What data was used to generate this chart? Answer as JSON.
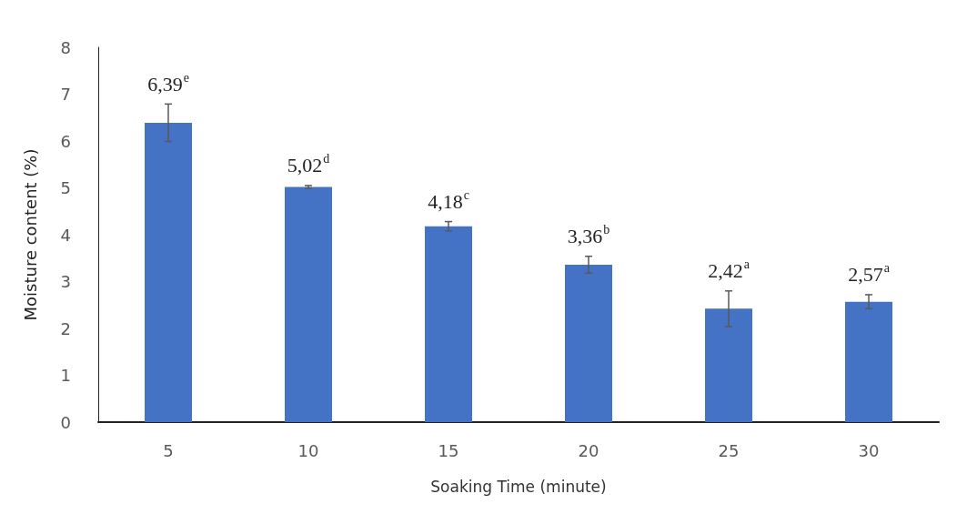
{
  "chart_data": {
    "type": "bar",
    "xlabel": "Soaking Time (minute)",
    "ylabel": "Moisture content (%)",
    "categories": [
      "5",
      "10",
      "15",
      "20",
      "25",
      "30"
    ],
    "values": [
      6.39,
      5.02,
      4.18,
      3.36,
      2.42,
      2.57
    ],
    "errors": [
      0.4,
      0.03,
      0.1,
      0.18,
      0.38,
      0.15
    ],
    "value_labels": [
      "6,39$^{e}$",
      "5,02$^{d}$",
      "4,18$^{c}$",
      "3,36$^{b}$",
      "2,42$^{a}$",
      "2,57$^{a}$"
    ],
    "color": "#4472c4",
    "ylim": [
      0,
      8
    ],
    "yticks": [
      0,
      1,
      2,
      3,
      4,
      5,
      6,
      7,
      8
    ],
    "grid": false
  }
}
